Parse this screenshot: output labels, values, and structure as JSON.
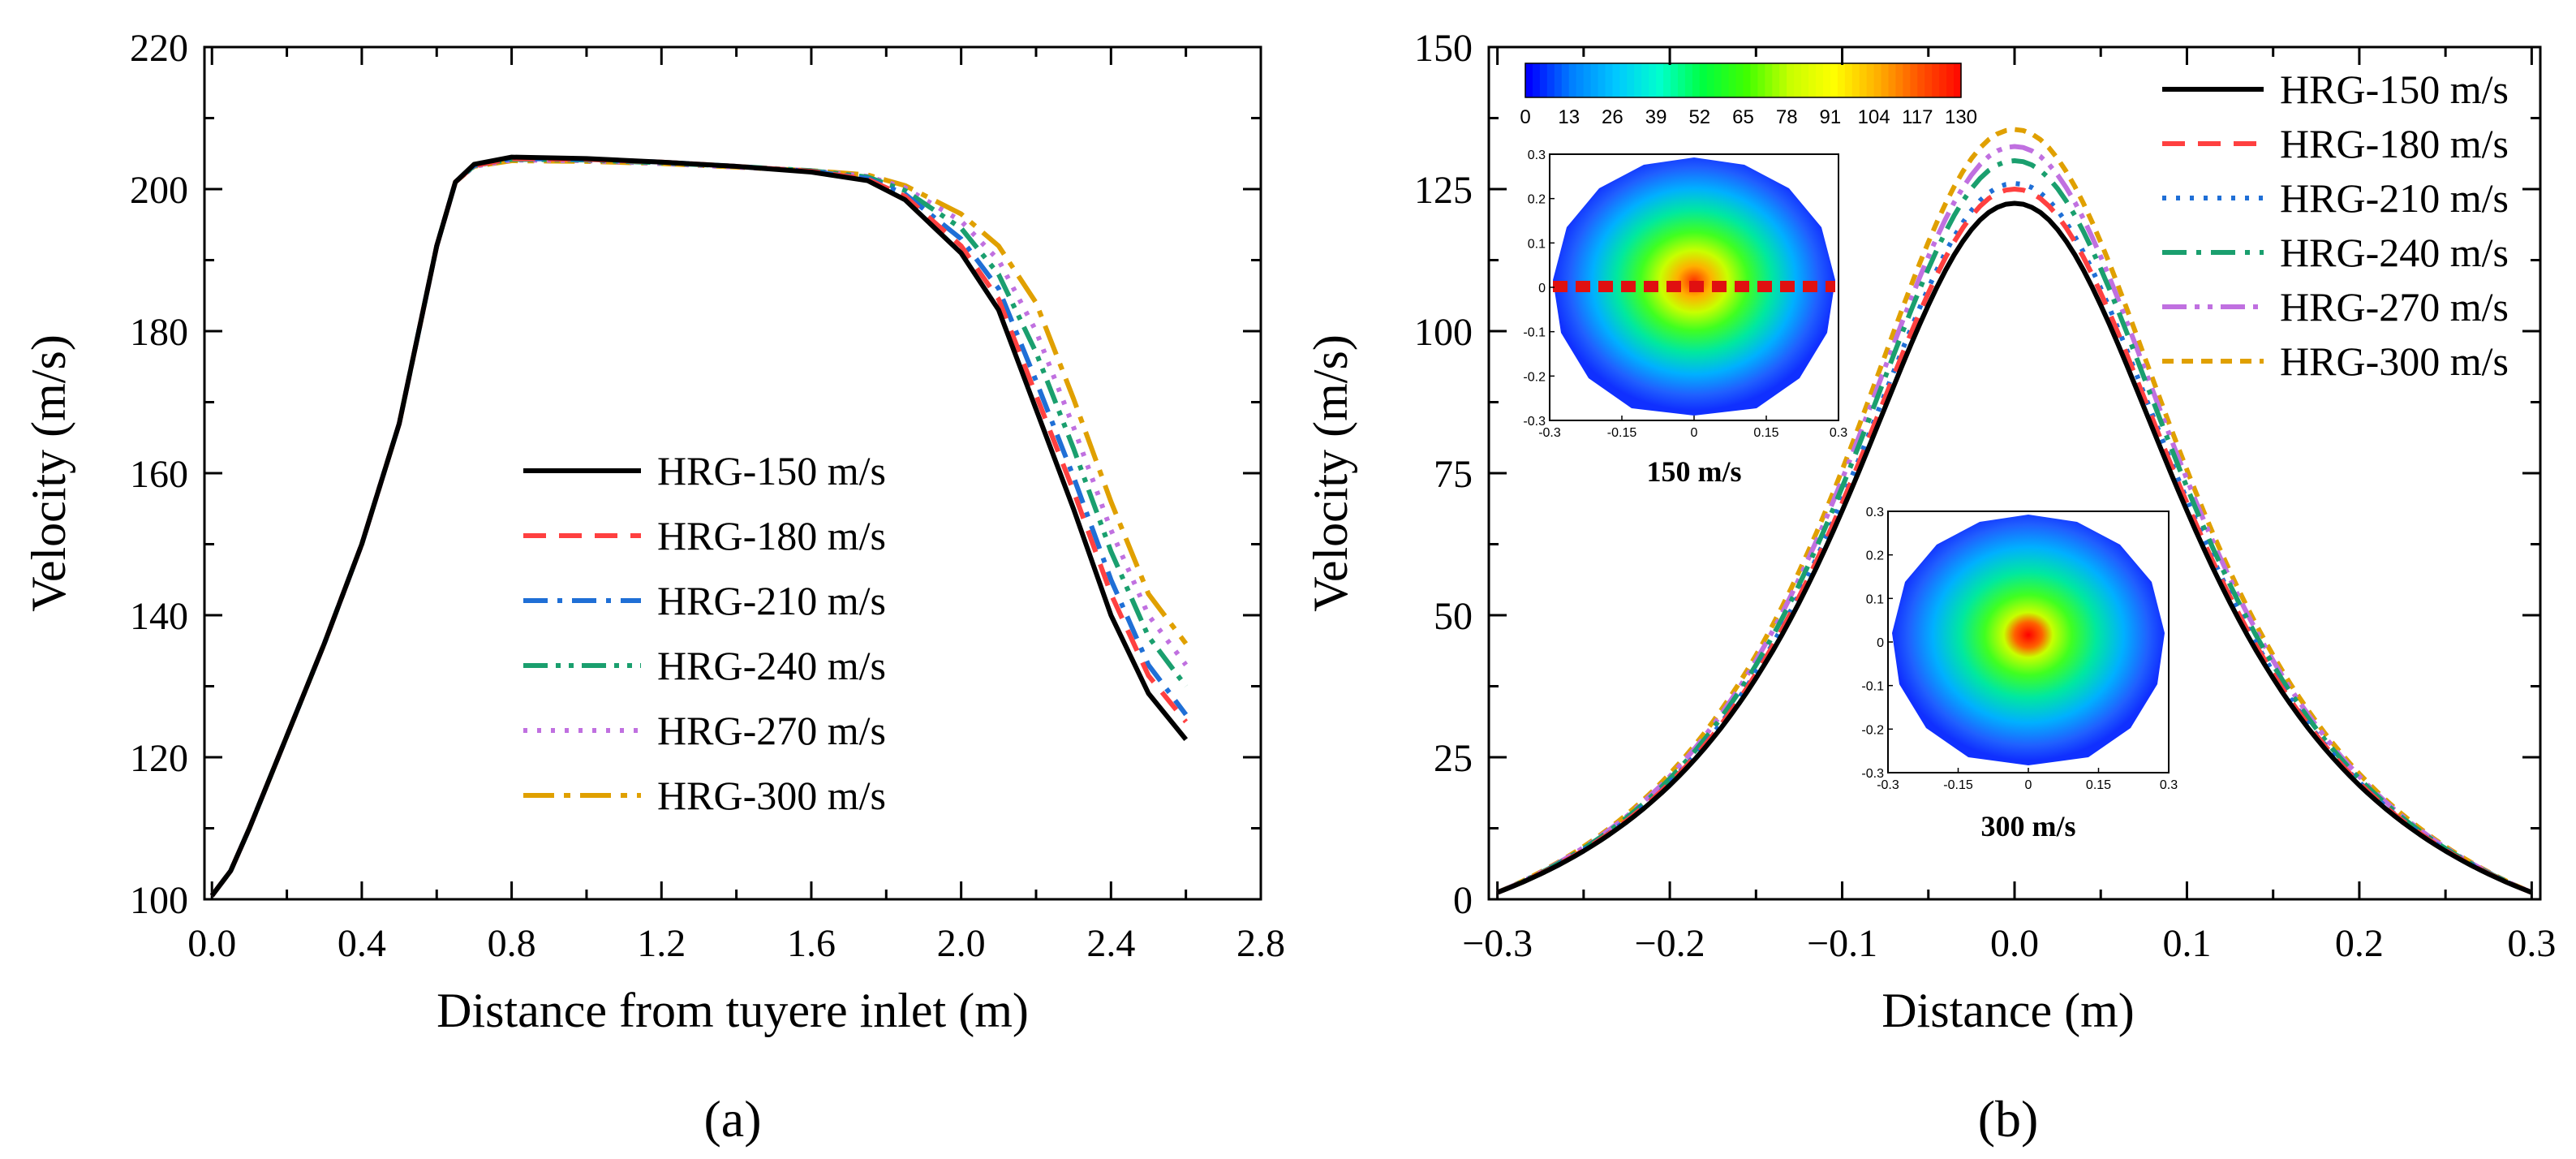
{
  "chart_data": [
    {
      "id": "a",
      "type": "line",
      "panel_label": "(a)",
      "xlabel": "Distance from tuyere inlet (m)",
      "ylabel": "Velocity (m/s)",
      "xlim": [
        -0.02,
        2.8
      ],
      "ylim": [
        100,
        220
      ],
      "xticks": [
        0.0,
        0.4,
        0.8,
        1.2,
        1.6,
        2.0,
        2.4,
        2.8
      ],
      "xtick_labels": [
        "0.0",
        "0.4",
        "0.8",
        "1.2",
        "1.6",
        "2.0",
        "2.4",
        "2.8"
      ],
      "yticks": [
        100,
        120,
        140,
        160,
        180,
        200,
        220
      ],
      "ytick_labels": [
        "100",
        "120",
        "140",
        "160",
        "180",
        "200",
        "220"
      ],
      "legend_position": "center-right",
      "series": [
        {
          "name": "HRG-150 m/s",
          "color": "#000000",
          "style": "solid",
          "x": [
            0,
            0.05,
            0.1,
            0.2,
            0.3,
            0.4,
            0.5,
            0.6,
            0.65,
            0.7,
            0.8,
            1.0,
            1.2,
            1.4,
            1.6,
            1.75,
            1.85,
            2.0,
            2.1,
            2.2,
            2.3,
            2.4,
            2.5,
            2.6
          ],
          "y": [
            100.5,
            104,
            110,
            123,
            136,
            150,
            167,
            192,
            201,
            203.5,
            204.5,
            204.3,
            203.8,
            203.2,
            202.4,
            201.2,
            198.5,
            191,
            183,
            169,
            155,
            140,
            129,
            122.5
          ]
        },
        {
          "name": "HRG-180 m/s",
          "color": "#ff4040",
          "style": "dash",
          "x": [
            0,
            0.05,
            0.1,
            0.2,
            0.3,
            0.4,
            0.5,
            0.6,
            0.65,
            0.7,
            0.8,
            1.0,
            1.2,
            1.4,
            1.6,
            1.75,
            1.85,
            2.0,
            2.1,
            2.2,
            2.3,
            2.4,
            2.5,
            2.6
          ],
          "y": [
            100.5,
            104,
            110,
            123,
            136,
            150,
            167,
            192,
            201,
            203.3,
            204.3,
            204.2,
            203.8,
            203.2,
            202.5,
            201.4,
            199,
            192,
            184.5,
            171,
            157.5,
            143,
            131.5,
            125
          ]
        },
        {
          "name": "HRG-210 m/s",
          "color": "#1f6fd6",
          "style": "dashdot",
          "x": [
            0,
            0.05,
            0.1,
            0.2,
            0.3,
            0.4,
            0.5,
            0.6,
            0.65,
            0.7,
            0.8,
            1.0,
            1.2,
            1.4,
            1.6,
            1.75,
            1.85,
            2.0,
            2.1,
            2.2,
            2.3,
            2.4,
            2.5,
            2.6
          ],
          "y": [
            100.5,
            104,
            110,
            123,
            136,
            150,
            167,
            192,
            201,
            203.3,
            204.3,
            204.2,
            203.8,
            203.2,
            202.5,
            201.5,
            199.3,
            193,
            186,
            173,
            159.5,
            145,
            133,
            126
          ]
        },
        {
          "name": "HRG-240 m/s",
          "color": "#1a9f6e",
          "style": "dashdotdot",
          "x": [
            0,
            0.05,
            0.1,
            0.2,
            0.3,
            0.4,
            0.5,
            0.6,
            0.65,
            0.7,
            0.8,
            1.0,
            1.2,
            1.4,
            1.6,
            1.75,
            1.85,
            2.0,
            2.1,
            2.2,
            2.3,
            2.4,
            2.5,
            2.6
          ],
          "y": [
            100.5,
            104,
            110,
            123,
            136,
            150,
            167,
            192,
            201,
            203.3,
            204.2,
            204.1,
            203.7,
            203.2,
            202.6,
            201.7,
            199.8,
            194.5,
            188,
            177,
            163.5,
            149,
            137,
            130
          ]
        },
        {
          "name": "HRG-270 m/s",
          "color": "#c070e0",
          "style": "dot",
          "x": [
            0,
            0.05,
            0.1,
            0.2,
            0.3,
            0.4,
            0.5,
            0.6,
            0.65,
            0.7,
            0.8,
            1.0,
            1.2,
            1.4,
            1.6,
            1.75,
            1.85,
            2.0,
            2.1,
            2.2,
            2.3,
            2.4,
            2.5,
            2.6
          ],
          "y": [
            100.5,
            104,
            110,
            123,
            136,
            150,
            167,
            192,
            201,
            203.2,
            204.1,
            204.0,
            203.6,
            203.1,
            202.6,
            201.8,
            200.2,
            195.5,
            190,
            180,
            166.5,
            152,
            140,
            133
          ]
        },
        {
          "name": "HRG-300 m/s",
          "color": "#e0a000",
          "style": "dashdotlong",
          "x": [
            0,
            0.05,
            0.1,
            0.2,
            0.3,
            0.4,
            0.5,
            0.6,
            0.65,
            0.7,
            0.8,
            1.0,
            1.2,
            1.4,
            1.6,
            1.75,
            1.85,
            2.0,
            2.1,
            2.2,
            2.3,
            2.4,
            2.5,
            2.6
          ],
          "y": [
            100.5,
            104,
            110,
            123,
            136,
            150,
            167,
            192,
            201,
            203.2,
            204.0,
            203.9,
            203.6,
            203.1,
            202.6,
            202.0,
            200.5,
            196.5,
            192,
            184,
            170.5,
            156,
            143,
            136
          ]
        }
      ]
    },
    {
      "id": "b",
      "type": "line",
      "panel_label": "(b)",
      "xlabel": "Distance (m)",
      "ylabel": "Velocity (m/s)",
      "xlim": [
        -0.305,
        0.305
      ],
      "ylim": [
        0,
        150
      ],
      "xticks": [
        -0.3,
        -0.2,
        -0.1,
        0.0,
        0.1,
        0.2,
        0.3
      ],
      "xtick_labels": [
        "−0.3",
        "−0.2",
        "−0.1",
        "0.0",
        "0.1",
        "0.2",
        "0.3"
      ],
      "yticks": [
        0,
        25,
        50,
        75,
        100,
        125,
        150
      ],
      "ytick_labels": [
        "0",
        "25",
        "50",
        "75",
        "100",
        "125",
        "150"
      ],
      "legend_position": "top-right",
      "series": [
        {
          "name": "HRG-150 m/s",
          "color": "#000000",
          "style": "solid",
          "peak": 122.5,
          "edge": 1.2
        },
        {
          "name": "HRG-180 m/s",
          "color": "#ff4040",
          "style": "dash",
          "peak": 125.0,
          "edge": 1.2
        },
        {
          "name": "HRG-210 m/s",
          "color": "#1f6fd6",
          "style": "dot",
          "peak": 126.0,
          "edge": 1.2
        },
        {
          "name": "HRG-240 m/s",
          "color": "#1a9f6e",
          "style": "dashdot",
          "peak": 130.0,
          "edge": 1.2
        },
        {
          "name": "HRG-270 m/s",
          "color": "#c070e0",
          "style": "dashdotdot",
          "peak": 132.5,
          "edge": 1.2
        },
        {
          "name": "HRG-300 m/s",
          "color": "#e0a000",
          "style": "shortdash",
          "peak": 135.5,
          "edge": 1.2
        }
      ],
      "colorbar": {
        "min": 0,
        "max": 130,
        "tick_labels": [
          "0",
          "13",
          "26",
          "39",
          "52",
          "65",
          "78",
          "91",
          "104",
          "117",
          "130"
        ],
        "colors": [
          "#0000ff",
          "#0080ff",
          "#00c8ff",
          "#00ffcc",
          "#00ff40",
          "#40ff00",
          "#c8ff00",
          "#ffff00",
          "#ffb000",
          "#ff5000",
          "#ff0000"
        ]
      },
      "insets": [
        {
          "label": "150 m/s",
          "axis_ticks": [
            "-0.3",
            "-0.15",
            "0",
            "0.15",
            "0.3"
          ],
          "y_ticks": [
            "0.3",
            "0.2",
            "0.1",
            "0",
            "-0.1",
            "-0.2",
            "-0.3"
          ],
          "center_value": 120
        },
        {
          "label": "300 m/s",
          "axis_ticks": [
            "-0.3",
            "-0.15",
            "0",
            "0.15",
            "0.3"
          ],
          "y_ticks": [
            "0.3",
            "0.2",
            "0.1",
            "0",
            "-0.1",
            "-0.2",
            "-0.3"
          ],
          "center_value": 130
        }
      ]
    }
  ]
}
